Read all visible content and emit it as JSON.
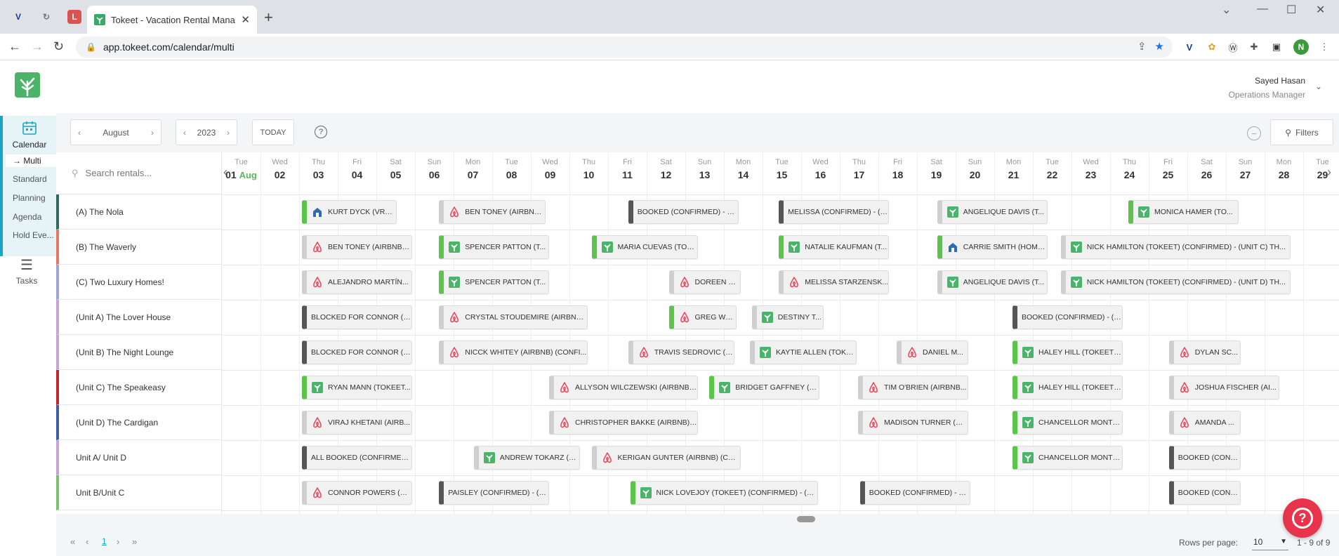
{
  "browser": {
    "tab_title": "Tokeet - Vacation Rental Manage",
    "url": "app.tokeet.com/calendar/multi",
    "profile_initial": "N"
  },
  "header": {
    "user_name": "Sayed Hasan",
    "user_role": "Operations Manager"
  },
  "sidebar": {
    "calendar_label": "Calendar",
    "sub_items": [
      "Multi",
      "Standard",
      "Planning",
      "Agenda",
      "Hold Eve..."
    ],
    "tasks_label": "Tasks"
  },
  "toolbar": {
    "month": "August",
    "year": "2023",
    "today": "TODAY",
    "help": "?",
    "filters": "Filters"
  },
  "search": {
    "placeholder": "Search rentals..."
  },
  "days": [
    {
      "dow": "Tue",
      "num": "01",
      "month": "Aug"
    },
    {
      "dow": "Wed",
      "num": "02"
    },
    {
      "dow": "Thu",
      "num": "03"
    },
    {
      "dow": "Fri",
      "num": "04"
    },
    {
      "dow": "Sat",
      "num": "05"
    },
    {
      "dow": "Sun",
      "num": "06"
    },
    {
      "dow": "Mon",
      "num": "07"
    },
    {
      "dow": "Tue",
      "num": "08"
    },
    {
      "dow": "Wed",
      "num": "09"
    },
    {
      "dow": "Thu",
      "num": "10"
    },
    {
      "dow": "Fri",
      "num": "11"
    },
    {
      "dow": "Sat",
      "num": "12"
    },
    {
      "dow": "Sun",
      "num": "13"
    },
    {
      "dow": "Mon",
      "num": "14"
    },
    {
      "dow": "Tue",
      "num": "15"
    },
    {
      "dow": "Wed",
      "num": "16"
    },
    {
      "dow": "Thu",
      "num": "17"
    },
    {
      "dow": "Fri",
      "num": "18"
    },
    {
      "dow": "Sat",
      "num": "19"
    },
    {
      "dow": "Sun",
      "num": "20"
    },
    {
      "dow": "Mon",
      "num": "21"
    },
    {
      "dow": "Tue",
      "num": "22"
    },
    {
      "dow": "Wed",
      "num": "23"
    },
    {
      "dow": "Thu",
      "num": "24"
    },
    {
      "dow": "Fri",
      "num": "25"
    },
    {
      "dow": "Sat",
      "num": "26"
    },
    {
      "dow": "Sun",
      "num": "27"
    },
    {
      "dow": "Mon",
      "num": "28"
    },
    {
      "dow": "Tue",
      "num": "29"
    }
  ],
  "rentals": [
    {
      "name": "(A) The Nola",
      "color": "#2e6b5e",
      "bookings": [
        {
          "text": "KURT DYCK (VRBO) (C...",
          "src": "vrbo",
          "start": 2,
          "span": 2.6
        },
        {
          "text": "BEN TONEY (AIRBNB) ...",
          "src": "airbnb",
          "start": 5.55,
          "span": 2.9
        },
        {
          "text": "BOOKED (CONFIRMED) - U...",
          "src": "blocked",
          "start": 10.45,
          "span": 3
        },
        {
          "text": "MELISSA (CONFIRMED) - (A...",
          "src": "blocked",
          "start": 14.35,
          "span": 3
        },
        {
          "text": "ANGELIQUE DAVIS (T...",
          "src": "tokeet-gray",
          "start": 18.45,
          "span": 3
        },
        {
          "text": "MONICA HAMER (TO...",
          "src": "tokeet",
          "start": 23.4,
          "span": 3
        }
      ]
    },
    {
      "name": "(B) The Waverly",
      "color": "#e8776a",
      "bookings": [
        {
          "text": "BEN TONEY (AIRBNB) ...",
          "src": "airbnb",
          "start": 2,
          "span": 3
        },
        {
          "text": "SPENCER PATTON (T...",
          "src": "tokeet",
          "start": 5.55,
          "span": 3
        },
        {
          "text": "MARIA CUEVAS (TOK...",
          "src": "tokeet",
          "start": 9.5,
          "span": 2.9
        },
        {
          "text": "NATALIE KAUFMAN (T...",
          "src": "tokeet",
          "start": 14.35,
          "span": 3
        },
        {
          "text": "CARRIE SMITH (HOME...",
          "src": "vrbo",
          "start": 18.45,
          "span": 3
        },
        {
          "text": "NICK HAMILTON (TOKEET) (CONFIRMED) - (UNIT C) TH...",
          "src": "tokeet-gray",
          "start": 21.65,
          "span": 6.1
        }
      ]
    },
    {
      "name": "(C) Two Luxury Homes!",
      "color": "#9da6d8",
      "bookings": [
        {
          "text": "ALEJANDRO MARTÍN...",
          "src": "airbnb",
          "start": 2,
          "span": 3
        },
        {
          "text": "SPENCER PATTON (T...",
          "src": "tokeet",
          "start": 5.55,
          "span": 3
        },
        {
          "text": "DOREEN R...",
          "src": "airbnb",
          "start": 11.5,
          "span": 2
        },
        {
          "text": "MELISSA STARZENSK...",
          "src": "airbnb",
          "start": 14.35,
          "span": 3
        },
        {
          "text": "ANGELIQUE DAVIS (T...",
          "src": "tokeet-gray",
          "start": 18.45,
          "span": 3
        },
        {
          "text": "NICK HAMILTON (TOKEET) (CONFIRMED) - (UNIT D) TH...",
          "src": "tokeet-gray",
          "start": 21.65,
          "span": 6.1
        }
      ]
    },
    {
      "name": "(Unit A) The Lover House",
      "color": "#c7a3d6",
      "bookings": [
        {
          "text": "BLOCKED FOR CONNOR (C...",
          "src": "blocked",
          "start": 2,
          "span": 3
        },
        {
          "text": "CRYSTAL STOUDEMIRE (AIRBNB)...",
          "src": "airbnb",
          "start": 5.55,
          "span": 4
        },
        {
          "text": "GREG WEA...",
          "src": "airbnb-green",
          "start": 11.5,
          "span": 1.9
        },
        {
          "text": "DESTINY T...",
          "src": "tokeet-gray",
          "start": 13.65,
          "span": 2
        },
        {
          "text": "BOOKED (CONFIRMED) - (C...",
          "src": "blocked",
          "start": 20.4,
          "span": 3
        }
      ]
    },
    {
      "name": "(Unit B) The Night Lounge",
      "color": "#c7a3d6",
      "bookings": [
        {
          "text": "BLOCKED FOR CONNOR (C...",
          "src": "blocked",
          "start": 2,
          "span": 3
        },
        {
          "text": "NICCK WHITEY (AIRBNB) (CONFI...",
          "src": "airbnb",
          "start": 5.55,
          "span": 4
        },
        {
          "text": "TRAVIS SEDROVIC (AI...",
          "src": "airbnb",
          "start": 10.45,
          "span": 2.9
        },
        {
          "text": "KAYTIE ALLEN (TOKE...",
          "src": "tokeet-gray",
          "start": 13.6,
          "span": 2.9
        },
        {
          "text": "DANIEL M...",
          "src": "airbnb",
          "start": 17.4,
          "span": 2
        },
        {
          "text": "HALEY HILL (TOKEET)...",
          "src": "tokeet",
          "start": 20.4,
          "span": 3
        },
        {
          "text": "DYLAN SC...",
          "src": "airbnb",
          "start": 24.45,
          "span": 2
        }
      ]
    },
    {
      "name": "(Unit C) The Speakeasy",
      "color": "#c0282d",
      "bookings": [
        {
          "text": "RYAN MANN (TOKEET...",
          "src": "tokeet",
          "start": 2,
          "span": 3
        },
        {
          "text": "ALLYSON WILCZEWSKI (AIRBNB)...",
          "src": "airbnb",
          "start": 8.4,
          "span": 4
        },
        {
          "text": "BRIDGET GAFFNEY (T...",
          "src": "tokeet",
          "start": 12.55,
          "span": 3
        },
        {
          "text": "TIM O'BRIEN (AIRBNB...",
          "src": "airbnb",
          "start": 16.4,
          "span": 3
        },
        {
          "text": "HALEY HILL (TOKEET)...",
          "src": "tokeet",
          "start": 20.4,
          "span": 3
        },
        {
          "text": "JOSHUA FISCHER (AI...",
          "src": "airbnb",
          "start": 24.45,
          "span": 3
        }
      ]
    },
    {
      "name": "(Unit D) The Cardigan",
      "color": "#3f5fa8",
      "bookings": [
        {
          "text": "VIRAJ KHETANI (AIRB...",
          "src": "airbnb",
          "start": 2,
          "span": 3
        },
        {
          "text": "CHRISTOPHER BAKKE (AIRBNB) ...",
          "src": "airbnb",
          "start": 8.4,
          "span": 4
        },
        {
          "text": "MADISON TURNER (AI...",
          "src": "airbnb",
          "start": 16.4,
          "span": 3
        },
        {
          "text": "CHANCELLOR MONTG...",
          "src": "tokeet",
          "start": 20.4,
          "span": 3
        },
        {
          "text": "AMANDA ...",
          "src": "airbnb",
          "start": 24.45,
          "span": 2
        }
      ]
    },
    {
      "name": "Unit A/ Unit D",
      "color": "#c7a3d6",
      "bookings": [
        {
          "text": "ALL BOOKED (CONFIRMED)...",
          "src": "blocked",
          "start": 2,
          "span": 3
        },
        {
          "text": "ANDREW TOKARZ (TO...",
          "src": "tokeet-gray",
          "start": 6.45,
          "span": 2.9
        },
        {
          "text": "KERIGAN GUNTER (AIRBNB) (CO...",
          "src": "airbnb",
          "start": 9.5,
          "span": 4
        },
        {
          "text": "CHANCELLOR MONTG...",
          "src": "tokeet",
          "start": 20.4,
          "span": 3
        },
        {
          "text": "BOOKED (CONFI...",
          "src": "blocked",
          "start": 24.45,
          "span": 2
        }
      ]
    },
    {
      "name": "Unit B/Unit C",
      "color": "#7ac36a",
      "bookings": [
        {
          "text": "CONNOR POWERS (AI...",
          "src": "airbnb",
          "start": 2,
          "span": 3
        },
        {
          "text": "PAISLEY (CONFIRMED) - (B)...",
          "src": "blocked",
          "start": 5.55,
          "span": 3
        },
        {
          "text": "NICK LOVEJOY (TOKEET) (CONFIRMED) - (U...",
          "src": "tokeet",
          "start": 10.5,
          "span": 5
        },
        {
          "text": "BOOKED (CONFIRMED) - U...",
          "src": "blocked",
          "start": 16.45,
          "span": 3
        },
        {
          "text": "BOOKED (CONFI...",
          "src": "blocked",
          "start": 24.45,
          "span": 2
        }
      ]
    }
  ],
  "pager": {
    "page": "1",
    "rows_label": "Rows per page:",
    "rows_value": "10",
    "range": "1 - 9 of 9"
  }
}
